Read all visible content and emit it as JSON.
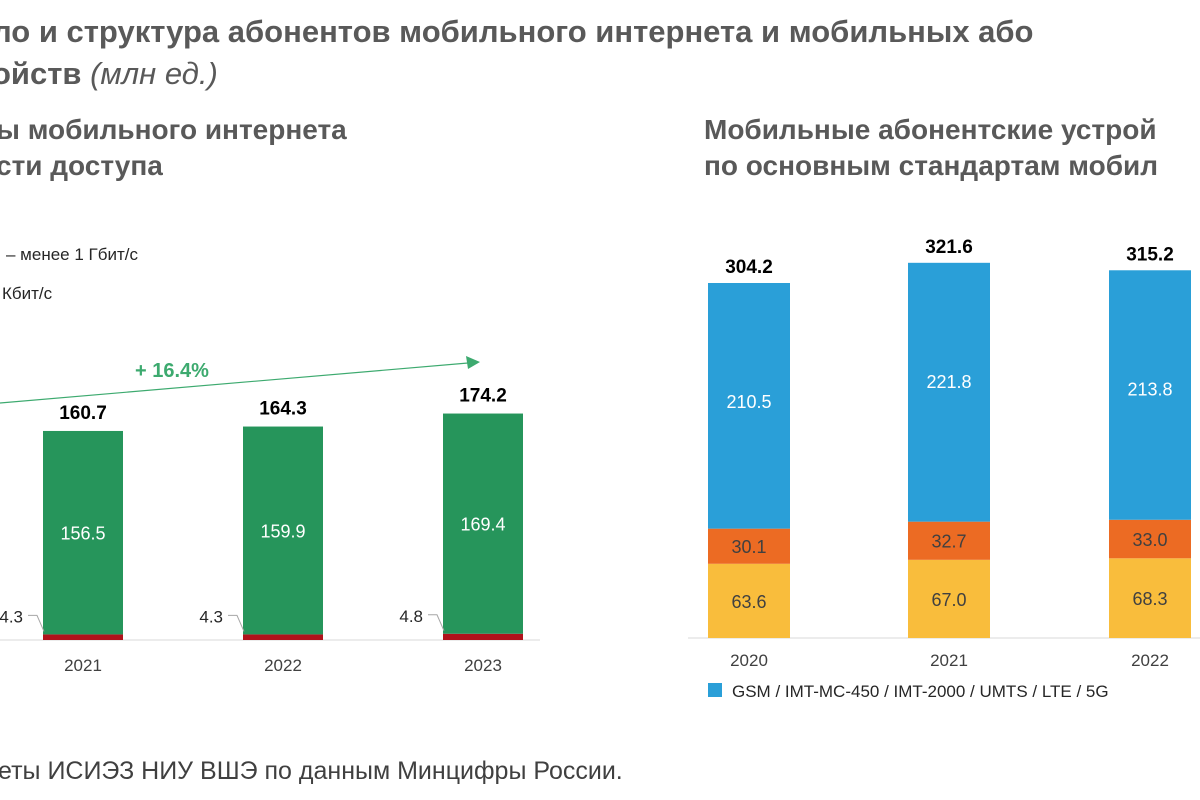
{
  "page": {
    "title_line1": "ло и структура абонентов мобильного интернета и мобильных або",
    "title_line2_bold": "ойств",
    "title_line2_italic": "(млн ед.)",
    "source": "еты ИСИЭЗ НИУ ВШЭ по данным Минцифры России."
  },
  "left_panel": {
    "subtitle_line1": "ы мобильного интернета",
    "subtitle_line2": "сти доступа",
    "legend_1": "– менее 1 Гбит/с",
    "legend_2": "Кбит/с",
    "growth_label": "+ 16.4%"
  },
  "right_panel": {
    "subtitle_line1": "Мобильные абонентские устрой",
    "subtitle_line2": "по основным стандартам мобил",
    "legend_label": "GSM / IMT-MC-450 / IMT-2000 / UMTS / LTE / 5G"
  },
  "colors": {
    "green": "#26955B",
    "red": "#B0121B",
    "blue": "#2A9FD8",
    "orange": "#EC6B23",
    "yellow": "#F9BD3C",
    "arrow": "#3DAA6F"
  },
  "chart_data": [
    {
      "type": "bar",
      "stacked": true,
      "categories": [
        "2021",
        "2022",
        "2023"
      ],
      "series": [
        {
          "name": "",
          "values": [
            4.3,
            4.3,
            4.8
          ],
          "color": "red"
        },
        {
          "name": "",
          "values": [
            156.5,
            159.9,
            169.4
          ],
          "color": "green"
        }
      ],
      "totals": [
        160.7,
        164.3,
        174.2
      ],
      "ylim": [
        0,
        180
      ]
    },
    {
      "type": "bar",
      "stacked": true,
      "categories": [
        "2020",
        "2021",
        "2022"
      ],
      "series": [
        {
          "name": "",
          "values": [
            63.6,
            67.0,
            68.3
          ],
          "color": "yellow"
        },
        {
          "name": "",
          "values": [
            30.1,
            32.7,
            33.0
          ],
          "color": "orange"
        },
        {
          "name": "GSM / IMT-MC-450 / IMT-2000 / UMTS / LTE / 5G",
          "values": [
            210.5,
            221.8,
            213.8
          ],
          "color": "blue"
        }
      ],
      "totals": [
        304.2,
        321.6,
        315.2
      ],
      "ylim": [
        0,
        330
      ]
    }
  ]
}
